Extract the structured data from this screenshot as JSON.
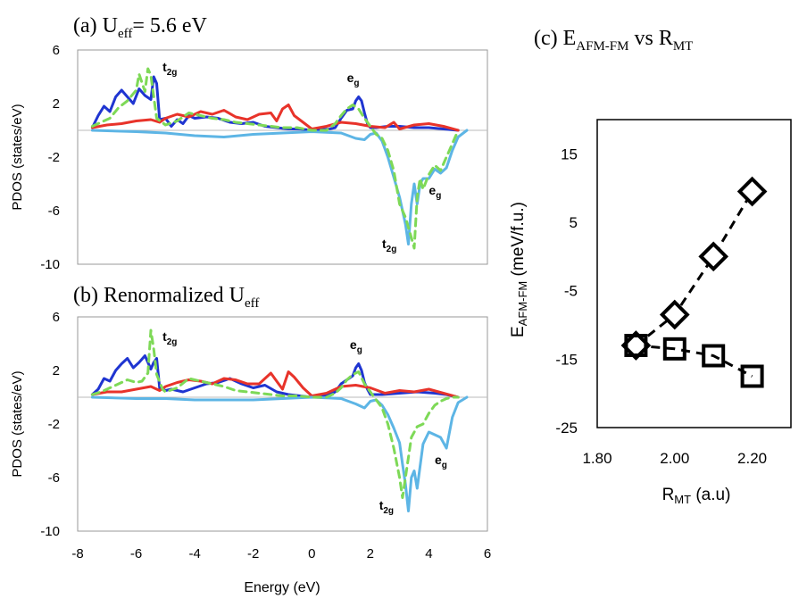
{
  "chart_data": [
    {
      "type": "line",
      "panel": "a",
      "title_prefix": "(a) U",
      "title_sub": "eff",
      "title_suffix": "= 5.6 eV",
      "ylabel": "PDOS (states/eV)",
      "xlabel": "",
      "xlim": [
        -8,
        6
      ],
      "ylim": [
        -10,
        6
      ],
      "yticks": [
        6,
        2,
        -2,
        -6,
        -10
      ],
      "xticks": [],
      "annotations": [
        {
          "main": "t",
          "sub": "2g",
          "x": -5.1,
          "y": 4.4
        },
        {
          "main": "e",
          "sub": "g",
          "x": 1.2,
          "y": 3.6
        },
        {
          "main": "e",
          "sub": "g",
          "x": 4.0,
          "y": -4.8
        },
        {
          "main": "t",
          "sub": "2g",
          "x": 2.4,
          "y": -8.8
        }
      ],
      "series": [
        {
          "color": "#1f35d1",
          "dash": false,
          "x": [
            -7.5,
            -7.3,
            -7.1,
            -6.9,
            -6.7,
            -6.5,
            -6.3,
            -6.1,
            -5.9,
            -5.7,
            -5.5,
            -5.4,
            -5.3,
            -5.2,
            -5.0,
            -4.8,
            -4.6,
            -4.4,
            -4.2,
            -4.0,
            -3.6,
            -3.2,
            -2.8,
            -2.4,
            -2.0,
            -1.6,
            -1.2,
            -0.8,
            -0.4,
            0.0,
            0.6,
            0.8,
            1.0,
            1.2,
            1.4,
            1.5,
            1.6,
            1.7,
            1.8,
            1.9,
            2.0,
            2.2,
            2.6,
            3.0,
            3.5,
            4.0,
            4.5,
            5.0
          ],
          "y": [
            0.2,
            1.1,
            1.8,
            1.4,
            2.5,
            3.0,
            2.5,
            2.0,
            3.1,
            2.6,
            2.3,
            4.0,
            3.5,
            0.8,
            0.9,
            0.3,
            0.8,
            0.5,
            1.1,
            0.9,
            1.0,
            0.9,
            0.6,
            0.5,
            0.6,
            0.3,
            0.2,
            0.1,
            0.1,
            0.0,
            0.1,
            0.2,
            0.9,
            1.5,
            1.6,
            2.2,
            2.5,
            2.2,
            1.3,
            0.5,
            0.2,
            0.2,
            0.3,
            0.3,
            0.2,
            0.2,
            0.1,
            0.0
          ]
        },
        {
          "color": "#e8332a",
          "dash": false,
          "x": [
            -7.5,
            -7.0,
            -6.5,
            -6.0,
            -5.5,
            -5.2,
            -5.0,
            -4.6,
            -4.2,
            -3.8,
            -3.4,
            -3.0,
            -2.6,
            -2.2,
            -1.8,
            -1.4,
            -1.2,
            -1.0,
            -0.8,
            -0.6,
            -0.3,
            0.0,
            0.5,
            1.0,
            1.5,
            2.0,
            2.5,
            2.8,
            3.0,
            3.5,
            4.0,
            4.5,
            5.0
          ],
          "y": [
            0.2,
            0.4,
            0.5,
            0.7,
            0.8,
            0.6,
            0.9,
            1.2,
            1.0,
            1.4,
            1.2,
            1.5,
            1.0,
            0.8,
            1.2,
            1.3,
            0.7,
            1.6,
            1.9,
            1.1,
            0.6,
            0.1,
            0.3,
            0.6,
            0.5,
            0.3,
            0.2,
            0.6,
            0.1,
            0.4,
            0.5,
            0.3,
            0.0
          ]
        },
        {
          "color": "#5db5e5",
          "dash": false,
          "x": [
            -7.5,
            -6.0,
            -5.0,
            -4.0,
            -3.0,
            -2.0,
            -1.0,
            0.0,
            1.0,
            1.5,
            1.8,
            2.0,
            2.2,
            2.4,
            2.6,
            2.8,
            3.0,
            3.2,
            3.3,
            3.4,
            3.5,
            3.6,
            3.7,
            3.8,
            4.0,
            4.2,
            4.4,
            4.6,
            4.8,
            5.0,
            5.3
          ],
          "y": [
            0.0,
            -0.1,
            -0.2,
            -0.4,
            -0.5,
            -0.3,
            -0.2,
            -0.1,
            -0.2,
            -0.6,
            -0.7,
            -0.3,
            -0.2,
            -0.8,
            -2.0,
            -3.5,
            -5.0,
            -7.0,
            -8.5,
            -5.5,
            -4.0,
            -5.5,
            -4.0,
            -3.6,
            -3.6,
            -2.9,
            -3.2,
            -2.8,
            -1.5,
            -0.5,
            0.0
          ]
        },
        {
          "color": "#7ed957",
          "dash": true,
          "x": [
            -7.5,
            -7.2,
            -6.9,
            -6.6,
            -6.3,
            -6.0,
            -5.9,
            -5.7,
            -5.6,
            -5.5,
            -5.3,
            -5.0,
            -4.6,
            -4.2,
            -3.8,
            -3.4,
            -3.0,
            -2.6,
            -2.2,
            -1.8,
            -1.4,
            -1.0,
            -0.5,
            0.0,
            0.5,
            0.8,
            1.0,
            1.2,
            1.4,
            1.6,
            1.8,
            2.0,
            2.2,
            2.4,
            2.6,
            2.8,
            3.0,
            3.2,
            3.4,
            3.5,
            3.6,
            3.7,
            3.8,
            4.0,
            4.2,
            4.4,
            4.6,
            4.8,
            5.0
          ],
          "y": [
            0.3,
            0.6,
            0.9,
            1.7,
            2.2,
            3.0,
            4.2,
            2.9,
            4.6,
            4.1,
            0.9,
            0.4,
            0.7,
            1.3,
            1.1,
            0.9,
            0.8,
            0.6,
            0.5,
            0.4,
            0.3,
            0.2,
            0.2,
            0.0,
            0.0,
            0.5,
            1.1,
            1.6,
            1.9,
            1.6,
            0.9,
            0.3,
            -0.3,
            -0.6,
            -1.5,
            -3.0,
            -5.5,
            -6.5,
            -8.0,
            -8.8,
            -5.0,
            -3.6,
            -4.4,
            -3.3,
            -2.6,
            -3.0,
            -2.0,
            -1.0,
            0.0
          ]
        }
      ]
    },
    {
      "type": "line",
      "panel": "b",
      "title_prefix": "(b) Renormalized U",
      "title_sub": "eff",
      "title_suffix": "",
      "ylabel": "PDOS (states/eV)",
      "xlabel": "Energy (eV)",
      "xlim": [
        -8,
        6
      ],
      "ylim": [
        -10,
        6
      ],
      "yticks": [
        6,
        2,
        -2,
        -6,
        -10
      ],
      "xticks": [
        -8,
        -6,
        -4,
        -2,
        0,
        2,
        4,
        6
      ],
      "annotations": [
        {
          "main": "t",
          "sub": "2g",
          "x": -5.1,
          "y": 4.2
        },
        {
          "main": "e",
          "sub": "g",
          "x": 1.3,
          "y": 3.6
        },
        {
          "main": "e",
          "sub": "g",
          "x": 4.2,
          "y": -5.0
        },
        {
          "main": "t",
          "sub": "2g",
          "x": 2.3,
          "y": -8.4
        }
      ],
      "series": [
        {
          "color": "#1f35d1",
          "dash": false,
          "x": [
            -7.5,
            -7.3,
            -7.1,
            -6.9,
            -6.7,
            -6.5,
            -6.3,
            -6.1,
            -5.9,
            -5.7,
            -5.5,
            -5.4,
            -5.3,
            -5.2,
            -5.0,
            -4.8,
            -4.4,
            -4.0,
            -3.6,
            -3.2,
            -2.8,
            -2.4,
            -2.0,
            -1.6,
            -1.2,
            -0.8,
            -0.4,
            0.0,
            0.6,
            0.8,
            1.0,
            1.2,
            1.4,
            1.5,
            1.6,
            1.7,
            1.8,
            1.9,
            2.0,
            2.4,
            3.0,
            3.6,
            4.2,
            4.6,
            5.0
          ],
          "y": [
            0.2,
            0.6,
            1.4,
            1.2,
            2.0,
            2.5,
            2.9,
            2.2,
            2.6,
            3.1,
            2.1,
            2.6,
            2.9,
            0.7,
            0.5,
            0.6,
            0.4,
            0.7,
            1.0,
            1.1,
            1.4,
            1.0,
            0.7,
            0.9,
            0.4,
            0.2,
            0.1,
            0.0,
            0.2,
            0.4,
            1.0,
            1.3,
            1.6,
            2.2,
            2.5,
            2.0,
            1.1,
            0.6,
            0.2,
            0.2,
            0.3,
            0.4,
            0.3,
            0.2,
            0.0
          ]
        },
        {
          "color": "#e8332a",
          "dash": false,
          "x": [
            -7.5,
            -7.0,
            -6.5,
            -6.0,
            -5.5,
            -5.2,
            -5.0,
            -4.6,
            -4.2,
            -3.8,
            -3.4,
            -3.0,
            -2.6,
            -2.2,
            -1.8,
            -1.4,
            -1.2,
            -1.0,
            -0.8,
            -0.6,
            -0.3,
            0.0,
            0.5,
            1.0,
            1.5,
            2.0,
            2.5,
            3.0,
            3.5,
            4.0,
            4.5,
            5.0
          ],
          "y": [
            0.2,
            0.4,
            0.4,
            0.6,
            0.8,
            0.5,
            0.8,
            1.1,
            1.3,
            1.2,
            1.0,
            1.4,
            1.3,
            1.0,
            1.0,
            1.8,
            1.2,
            0.6,
            1.9,
            1.5,
            0.7,
            0.1,
            0.3,
            0.8,
            0.9,
            0.7,
            0.3,
            0.5,
            0.4,
            0.6,
            0.3,
            0.0
          ]
        },
        {
          "color": "#5db5e5",
          "dash": false,
          "x": [
            -7.5,
            -6.0,
            -5.0,
            -4.0,
            -3.0,
            -2.0,
            -1.0,
            0.0,
            1.0,
            1.5,
            1.8,
            2.0,
            2.2,
            2.4,
            2.6,
            2.8,
            3.0,
            3.1,
            3.2,
            3.3,
            3.4,
            3.5,
            3.6,
            3.8,
            4.0,
            4.2,
            4.4,
            4.6,
            4.8,
            5.0,
            5.3
          ],
          "y": [
            0.0,
            -0.1,
            -0.1,
            -0.2,
            -0.2,
            -0.2,
            -0.1,
            0.0,
            -0.1,
            -0.5,
            -0.8,
            -0.3,
            -0.2,
            -0.6,
            -1.3,
            -2.3,
            -3.4,
            -5.0,
            -6.5,
            -8.5,
            -6.0,
            -5.5,
            -6.8,
            -3.5,
            -2.6,
            -2.8,
            -3.0,
            -3.8,
            -1.5,
            -0.4,
            0.0
          ]
        },
        {
          "color": "#7ed957",
          "dash": true,
          "x": [
            -7.5,
            -7.2,
            -6.9,
            -6.6,
            -6.3,
            -6.0,
            -5.8,
            -5.6,
            -5.5,
            -5.4,
            -5.3,
            -5.1,
            -5.0,
            -4.6,
            -4.2,
            -3.8,
            -3.4,
            -3.0,
            -2.6,
            -2.2,
            -1.8,
            -1.4,
            -1.0,
            -0.5,
            0.0,
            0.5,
            0.8,
            1.0,
            1.2,
            1.4,
            1.6,
            1.8,
            2.0,
            2.2,
            2.4,
            2.6,
            2.8,
            3.0,
            3.1,
            3.2,
            3.3,
            3.4,
            3.6,
            3.8,
            4.0,
            4.2,
            4.4,
            4.6,
            4.8,
            5.0
          ],
          "y": [
            0.2,
            0.4,
            0.7,
            1.0,
            1.3,
            1.1,
            1.2,
            1.8,
            5.0,
            3.6,
            1.7,
            0.6,
            0.4,
            0.7,
            1.4,
            1.2,
            1.0,
            0.8,
            0.5,
            0.4,
            0.3,
            0.2,
            0.1,
            0.1,
            0.0,
            0.0,
            0.3,
            0.7,
            1.3,
            1.7,
            1.9,
            1.0,
            0.4,
            -0.2,
            -0.8,
            -2.0,
            -3.8,
            -6.0,
            -7.5,
            -6.0,
            -4.5,
            -3.0,
            -2.2,
            -2.0,
            -1.2,
            -0.6,
            -0.3,
            -0.1,
            0.0,
            0.0
          ]
        }
      ]
    },
    {
      "type": "scatter",
      "panel": "c",
      "title_prefix": "(c) E",
      "title_sub": "AFM-FM",
      "title_mid": " vs R",
      "title_sub2": "MT",
      "ylabel_main": "E",
      "ylabel_sub": "AFM-FM",
      "ylabel_suffix": " (meV/f.u.)",
      "xlabel_main": "R",
      "xlabel_sub": "MT",
      "xlabel_suffix": " (a.u)",
      "xlim": [
        1.8,
        2.3
      ],
      "ylim": [
        -25,
        20
      ],
      "xticks": [
        "1.80",
        "2.00",
        "2.20"
      ],
      "xtick_values": [
        1.8,
        2.0,
        2.2
      ],
      "yticks": [
        "15",
        "5",
        "-5",
        "-15",
        "-25"
      ],
      "ytick_values": [
        15,
        5,
        -5,
        -15,
        -25
      ],
      "series": [
        {
          "marker": "diamond",
          "x": [
            1.9,
            2.0,
            2.1,
            2.2
          ],
          "y": [
            -13.0,
            -8.5,
            0.0,
            9.5
          ]
        },
        {
          "marker": "square",
          "x": [
            1.9,
            2.0,
            2.1,
            2.2
          ],
          "y": [
            -13.0,
            -13.5,
            -14.5,
            -17.5
          ]
        }
      ]
    }
  ]
}
